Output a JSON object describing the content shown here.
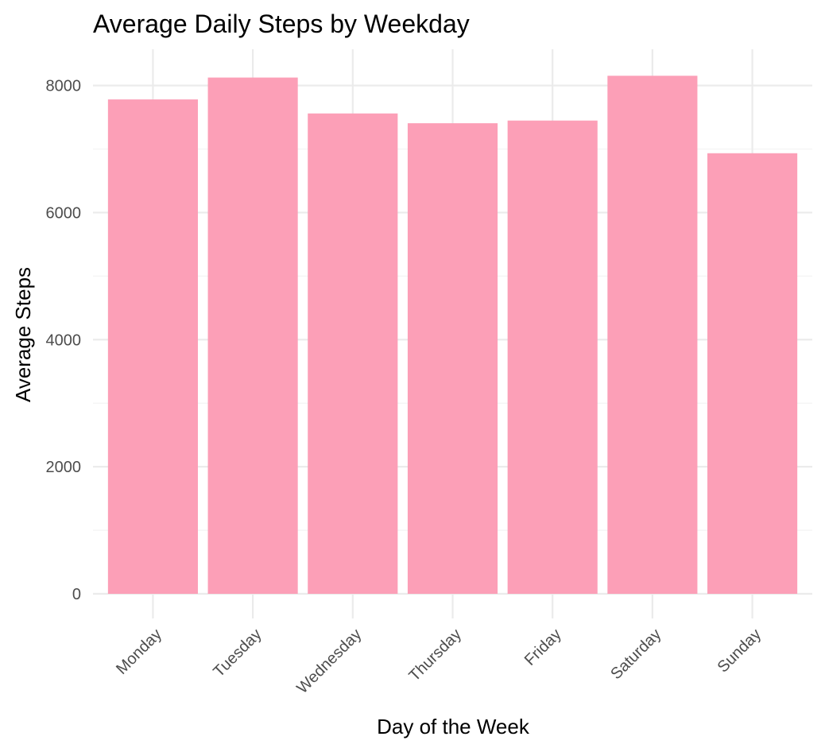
{
  "chart_data": {
    "type": "bar",
    "title": "Average Daily Steps by Weekday",
    "xlabel": "Day of the Week",
    "ylabel": "Average Steps",
    "categories": [
      "Monday",
      "Tuesday",
      "Wednesday",
      "Thursday",
      "Friday",
      "Saturday",
      "Sunday"
    ],
    "values": [
      7781,
      8125,
      7560,
      7406,
      7448,
      8153,
      6934
    ],
    "ylim": [
      0,
      8500
    ],
    "yticks": [
      0,
      2000,
      4000,
      6000,
      8000
    ],
    "ytick_labels": [
      "0",
      "2000",
      "4000",
      "6000",
      "8000"
    ],
    "bar_color": "#fc9fb7",
    "grid": true,
    "legend": "none"
  }
}
